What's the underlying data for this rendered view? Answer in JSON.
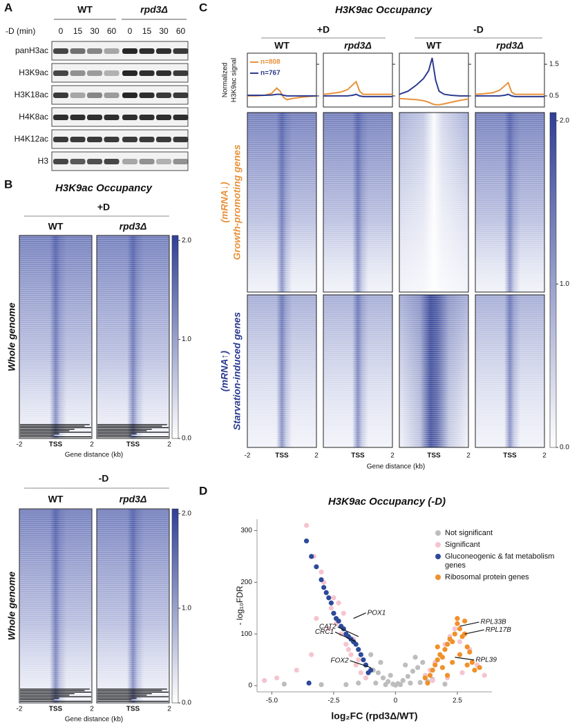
{
  "panel_a": {
    "letter": "A",
    "groups": [
      "WT",
      "rpd3Δ"
    ],
    "condition_label": "-D (min)",
    "timepoints": [
      "0",
      "15",
      "30",
      "60",
      "0",
      "15",
      "30",
      "60"
    ],
    "rows": [
      {
        "name": "panH3ac",
        "bands": [
          0.8,
          0.6,
          0.5,
          0.35,
          0.95,
          0.9,
          0.9,
          0.85
        ]
      },
      {
        "name": "H3K9ac",
        "bands": [
          0.8,
          0.45,
          0.4,
          0.3,
          0.95,
          0.9,
          0.9,
          0.85
        ]
      },
      {
        "name": "H3K18ac",
        "bands": [
          0.85,
          0.35,
          0.5,
          0.4,
          0.95,
          0.9,
          0.85,
          0.85
        ]
      },
      {
        "name": "H4K8ac",
        "bands": [
          0.9,
          0.9,
          0.9,
          0.9,
          0.9,
          0.9,
          0.9,
          0.9
        ]
      },
      {
        "name": "H4K12ac",
        "bands": [
          0.85,
          0.85,
          0.85,
          0.85,
          0.85,
          0.85,
          0.85,
          0.85
        ]
      },
      {
        "name": "H3",
        "bands": [
          0.8,
          0.7,
          0.75,
          0.8,
          0.35,
          0.45,
          0.3,
          0.45
        ]
      }
    ]
  },
  "panel_b": {
    "letter": "B",
    "title": "H3K9ac Occupancy",
    "conditions": [
      "+D",
      "-D"
    ],
    "columns": [
      "WT",
      "rpd3Δ"
    ],
    "row_label": "Whole genome",
    "x_labels": [
      "-2",
      "TSS",
      "2"
    ],
    "x_title": "Gene distance (kb)",
    "colorbar": {
      "lim": [
        0,
        2.05
      ],
      "ticks": [
        {
          "value": 0,
          "label": "0.0"
        },
        {
          "value": 1,
          "label": "1.0"
        },
        {
          "value": 2,
          "label": "2.0"
        }
      ]
    }
  },
  "panel_c": {
    "letter": "C",
    "title": "H3K9ac Occupancy",
    "conditions": [
      "+D",
      "-D"
    ],
    "groups": [
      {
        "tag": "(mRNA↓)",
        "label": "Growth-promoting genes",
        "color": "#e8913a"
      },
      {
        "tag": "(mRNA↑)",
        "label": "Starvation-induced genes",
        "color": "#2a3a8f"
      }
    ],
    "x_labels": [
      "-2",
      "TSS",
      "2"
    ],
    "x_title": "Gene distance (kb)",
    "colorbar": {
      "lim": [
        0,
        2.05
      ],
      "ticks": [
        {
          "value": 0,
          "label": "0.0"
        },
        {
          "value": 1,
          "label": "1.0"
        },
        {
          "value": 2,
          "label": "2.0"
        }
      ]
    }
  },
  "panel_d": {
    "letter": "D"
  },
  "chart_data": [
    {
      "type": "line",
      "title": "WT",
      "ylabel": [
        "Normalized",
        "H3K9ac signal"
      ],
      "x": [
        -2,
        -1.5,
        -1,
        -0.6,
        -0.3,
        -0.1,
        0.1,
        0.3,
        0.6,
        1,
        1.5,
        2
      ],
      "xlim": [
        -2,
        2
      ],
      "ylim": [
        0.15,
        1.85
      ],
      "yticks": [
        0.5,
        1.5
      ],
      "series": [
        {
          "name": "n=808",
          "color": "#e8913a",
          "values": [
            0.5,
            0.5,
            0.52,
            0.58,
            0.75,
            0.65,
            0.45,
            0.38,
            0.42,
            0.45,
            0.48,
            0.5
          ]
        },
        {
          "name": "n=767",
          "color": "#2a3a8f",
          "values": [
            0.52,
            0.52,
            0.52,
            0.53,
            0.55,
            0.55,
            0.52,
            0.5,
            0.5,
            0.5,
            0.5,
            0.5
          ]
        }
      ]
    },
    {
      "type": "line",
      "title": "rpd3Δ",
      "x": [
        -2,
        -1.5,
        -1,
        -0.6,
        -0.3,
        -0.1,
        0.1,
        0.3,
        0.6,
        1,
        1.5,
        2
      ],
      "xlim": [
        -2,
        2
      ],
      "ylim": [
        0.15,
        1.85
      ],
      "yticks": [
        0.5,
        1.5
      ],
      "series": [
        {
          "color": "#e8913a",
          "values": [
            0.55,
            0.58,
            0.62,
            0.7,
            0.85,
            0.95,
            0.65,
            0.55,
            0.55,
            0.55,
            0.55,
            0.55
          ]
        },
        {
          "color": "#2a3a8f",
          "values": [
            0.5,
            0.5,
            0.5,
            0.5,
            0.52,
            0.55,
            0.5,
            0.48,
            0.48,
            0.48,
            0.48,
            0.48
          ]
        }
      ]
    },
    {
      "type": "line",
      "title": "WT",
      "x": [
        -2,
        -1.5,
        -1,
        -0.6,
        -0.3,
        -0.1,
        0.1,
        0.3,
        0.6,
        1,
        1.5,
        2
      ],
      "xlim": [
        -2,
        2
      ],
      "ylim": [
        0.15,
        1.85
      ],
      "yticks": [
        0.5,
        1.5
      ],
      "series": [
        {
          "color": "#e8913a",
          "values": [
            0.42,
            0.4,
            0.38,
            0.35,
            0.3,
            0.25,
            0.22,
            0.22,
            0.25,
            0.3,
            0.36,
            0.4
          ]
        },
        {
          "color": "#2a3a8f",
          "values": [
            0.55,
            0.65,
            0.85,
            1.05,
            1.3,
            1.7,
            1.0,
            0.65,
            0.55,
            0.52,
            0.5,
            0.5
          ]
        }
      ]
    },
    {
      "type": "line",
      "title": "rpd3Δ",
      "x": [
        -2,
        -1.5,
        -1,
        -0.6,
        -0.3,
        -0.1,
        0.1,
        0.3,
        0.6,
        1,
        1.5,
        2
      ],
      "xlim": [
        -2,
        2
      ],
      "ylim": [
        0.15,
        1.85
      ],
      "yticks": [
        0.5,
        1.5
      ],
      "series": [
        {
          "color": "#e8913a",
          "values": [
            0.55,
            0.57,
            0.6,
            0.68,
            0.82,
            0.92,
            0.62,
            0.55,
            0.55,
            0.55,
            0.55,
            0.55
          ]
        },
        {
          "color": "#2a3a8f",
          "values": [
            0.5,
            0.5,
            0.5,
            0.5,
            0.52,
            0.55,
            0.5,
            0.48,
            0.48,
            0.48,
            0.48,
            0.48
          ]
        }
      ]
    },
    {
      "type": "scatter",
      "title": "H3K9ac Occupancy (-D)",
      "xlabel": "log₂FC (rpd3Δ/WT)",
      "ylabel": "- log₁₀FDR",
      "xlim": [
        -5.6,
        3.9
      ],
      "ylim": [
        -12,
        322
      ],
      "xticks": [
        {
          "value": -5,
          "label": "-5.0"
        },
        {
          "value": -2.5,
          "label": "-2.5"
        },
        0,
        {
          "value": 2.5,
          "label": "2.5"
        }
      ],
      "yticks": [
        0,
        100,
        200,
        300
      ],
      "series": [
        {
          "name": "Not significant",
          "color": "#bdbdbd",
          "x": [
            -1.2,
            -0.9,
            -0.7,
            -0.5,
            -0.3,
            -0.1,
            0.1,
            0.3,
            0.5,
            0.7,
            0.9,
            1.1,
            -1.5,
            -0.8,
            -0.4,
            0.2,
            0.6,
            1.0,
            1.3,
            -2.0,
            -1.0,
            0.0,
            0.4,
            0.8,
            -0.6,
            1.5,
            -3.0,
            -4.5,
            2.0,
            -0.2
          ],
          "values": [
            40,
            30,
            25,
            15,
            8,
            3,
            4,
            10,
            18,
            28,
            35,
            45,
            5,
            5,
            2,
            2,
            5,
            6,
            8,
            2,
            60,
            1,
            40,
            55,
            45,
            12,
            2,
            3,
            3,
            20
          ]
        },
        {
          "name": "Significant",
          "color": "#f5c4cf",
          "x": [
            -5.3,
            -4.8,
            -4.0,
            -3.6,
            -3.3,
            -3.0,
            -2.8,
            -2.6,
            -2.4,
            -2.2,
            -2.0,
            -1.8,
            -1.6,
            -1.4,
            -1.2,
            -3.2,
            -2.9,
            -2.5,
            -2.1,
            -1.7,
            -3.4,
            -2.7,
            -2.3,
            -1.9,
            -1.5,
            1.2,
            1.4,
            1.6,
            1.8,
            2.0,
            2.2,
            2.4,
            2.6,
            2.8,
            3.0,
            3.3,
            3.6,
            1.5,
            2.1,
            2.7
          ],
          "values": [
            10,
            15,
            30,
            310,
            250,
            220,
            180,
            150,
            120,
            100,
            80,
            60,
            40,
            25,
            15,
            130,
            200,
            170,
            140,
            90,
            60,
            110,
            160,
            70,
            50,
            20,
            30,
            45,
            60,
            80,
            95,
            110,
            85,
            100,
            70,
            40,
            20,
            10,
            15,
            25
          ]
        },
        {
          "name": "Gluconeogenic & fat metabolism genes",
          "color": "#2c4a9a",
          "x": [
            -3.6,
            -3.4,
            -3.2,
            -3.0,
            -2.8,
            -2.6,
            -2.5,
            -2.4,
            -2.3,
            -2.2,
            -2.1,
            -2.0,
            -1.9,
            -1.8,
            -1.7,
            -1.6,
            -1.5,
            -1.4,
            -1.3,
            -1.2,
            -1.1,
            -2.7,
            -2.9,
            -3.5,
            -1.0
          ],
          "values": [
            280,
            250,
            230,
            205,
            180,
            160,
            140,
            130,
            125,
            115,
            110,
            100,
            95,
            90,
            85,
            80,
            70,
            60,
            50,
            40,
            25,
            170,
            190,
            5,
            30
          ]
        },
        {
          "name": "Ribosomal protein genes",
          "color": "#f0902a",
          "x": [
            1.2,
            1.4,
            1.5,
            1.6,
            1.7,
            1.8,
            1.9,
            2.0,
            2.1,
            2.2,
            2.3,
            2.4,
            2.5,
            2.6,
            2.7,
            2.8,
            2.9,
            3.0,
            3.1,
            3.2,
            1.3,
            1.9,
            2.3,
            2.6,
            2.9,
            2.1,
            2.5,
            1.7,
            2.8,
            3.4
          ],
          "values": [
            15,
            20,
            30,
            40,
            50,
            60,
            55,
            70,
            80,
            90,
            85,
            100,
            120,
            110,
            95,
            100,
            75,
            65,
            45,
            30,
            5,
            35,
            45,
            60,
            40,
            20,
            130,
            75,
            125,
            35
          ]
        }
      ],
      "annotations": [
        {
          "text": "POX1",
          "x": -1.7,
          "y": 130
        },
        {
          "text": "CAT2",
          "x": -1.5,
          "y": 95
        },
        {
          "text": "CRC1",
          "x": -1.6,
          "y": 85
        },
        {
          "text": "FOX2",
          "x": -1.0,
          "y": 35
        },
        {
          "text": "RPL33B",
          "x": 2.6,
          "y": 115
        },
        {
          "text": "RPL17B",
          "x": 2.8,
          "y": 100
        },
        {
          "text": "RPL39",
          "x": 2.4,
          "y": 55
        }
      ]
    }
  ]
}
